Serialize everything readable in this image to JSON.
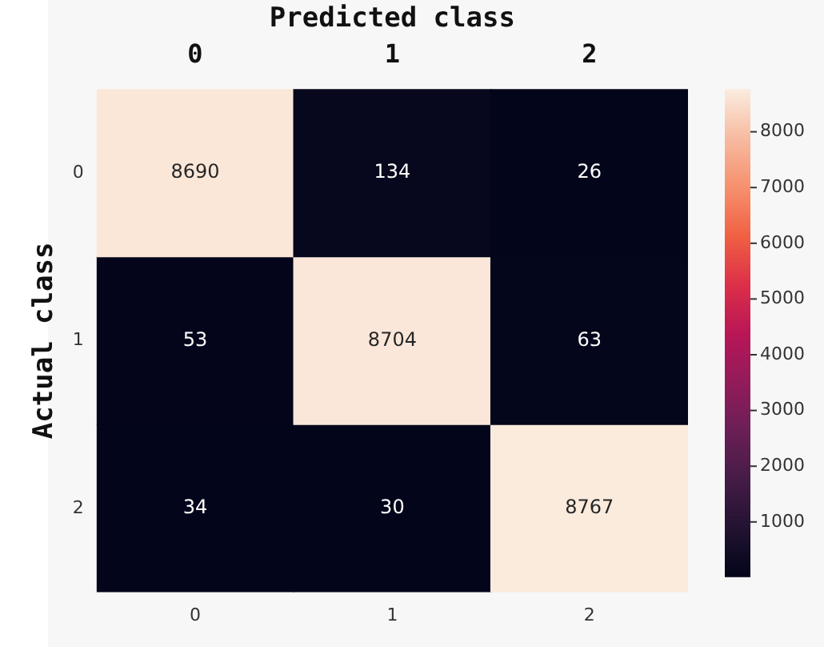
{
  "chart_data": {
    "type": "heatmap",
    "xlabel": "Predicted class",
    "ylabel": "Actual class",
    "categories": [
      "0",
      "1",
      "2"
    ],
    "y_categories": [
      "0",
      "1",
      "2"
    ],
    "cells": [
      [
        8690,
        134,
        26
      ],
      [
        53,
        8704,
        63
      ],
      [
        34,
        30,
        8767
      ]
    ],
    "data_labels": true,
    "clim": [
      26,
      8767
    ],
    "cticks": [
      1000,
      2000,
      3000,
      4000,
      5000,
      6000,
      7000,
      8000
    ]
  }
}
